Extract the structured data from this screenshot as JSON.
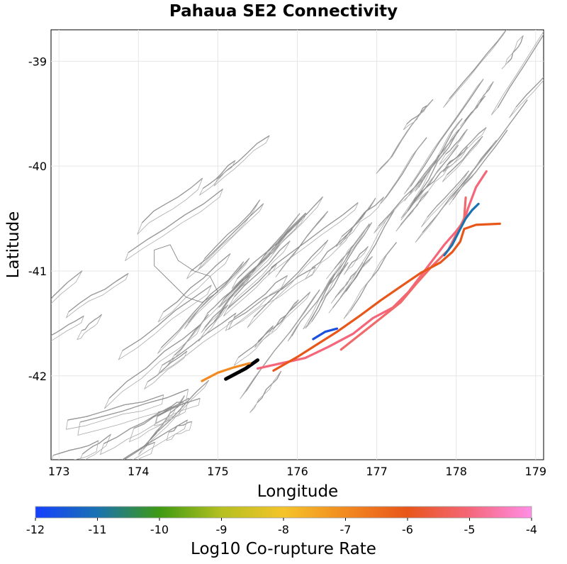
{
  "chart_data": {
    "type": "map",
    "title": "Pahaua SE2 Connectivity",
    "xlabel": "Longitude",
    "ylabel": "Latitude",
    "xlim": [
      172.9,
      179.1
    ],
    "ylim": [
      -42.8,
      -38.7
    ],
    "xticks": [
      173,
      174,
      175,
      176,
      177,
      178,
      179
    ],
    "yticks": [
      -39,
      -40,
      -41,
      -42
    ],
    "grid": true,
    "colorbar": {
      "label": "Log10 Co-rupture Rate",
      "min": -12,
      "max": -4,
      "ticks": [
        -12,
        -11,
        -10,
        -9,
        -8,
        -7,
        -6,
        -5,
        -4
      ],
      "colors": [
        "#1540ff",
        "#1a72b0",
        "#3e9a12",
        "#b5c020",
        "#f4c42a",
        "#f28a20",
        "#e8561a",
        "#f5667a",
        "#ff8ee6"
      ]
    },
    "highlighted_ruptures": [
      {
        "log10_rate": -12,
        "color": "#000000",
        "points": [
          [
            175.1,
            -42.03
          ],
          [
            175.35,
            -41.93
          ],
          [
            175.5,
            -41.85
          ]
        ]
      },
      {
        "log10_rate": -7.3,
        "color": "#f28a20",
        "points": [
          [
            174.8,
            -42.05
          ],
          [
            175.0,
            -41.97
          ],
          [
            175.2,
            -41.92
          ],
          [
            175.4,
            -41.88
          ]
        ]
      },
      {
        "log10_rate": -5.0,
        "color": "#f5667a",
        "points": [
          [
            175.5,
            -41.93
          ],
          [
            175.8,
            -41.88
          ],
          [
            176.1,
            -41.83
          ],
          [
            176.4,
            -41.72
          ],
          [
            176.7,
            -41.6
          ],
          [
            176.95,
            -41.45
          ],
          [
            177.2,
            -41.35
          ],
          [
            177.4,
            -41.2
          ],
          [
            177.55,
            -41.05
          ],
          [
            177.7,
            -40.9
          ],
          [
            177.85,
            -40.75
          ],
          [
            178.0,
            -40.62
          ],
          [
            178.1,
            -40.52
          ],
          [
            178.15,
            -40.4
          ],
          [
            178.25,
            -40.2
          ],
          [
            178.38,
            -40.05
          ]
        ]
      },
      {
        "log10_rate": -5.3,
        "color": "#f06a6a",
        "points": [
          [
            176.55,
            -41.75
          ],
          [
            176.8,
            -41.6
          ],
          [
            177.05,
            -41.45
          ],
          [
            177.3,
            -41.3
          ],
          [
            177.5,
            -41.12
          ],
          [
            177.7,
            -40.95
          ],
          [
            177.9,
            -40.8
          ],
          [
            178.0,
            -40.65
          ],
          [
            178.1,
            -40.5
          ],
          [
            178.12,
            -40.3
          ]
        ]
      },
      {
        "log10_rate": -6.0,
        "color": "#e8561a",
        "points": [
          [
            175.7,
            -41.95
          ],
          [
            176.0,
            -41.82
          ],
          [
            176.25,
            -41.7
          ],
          [
            176.5,
            -41.58
          ],
          [
            176.8,
            -41.42
          ],
          [
            177.05,
            -41.28
          ],
          [
            177.3,
            -41.15
          ],
          [
            177.55,
            -41.02
          ],
          [
            177.8,
            -40.92
          ],
          [
            177.95,
            -40.82
          ],
          [
            178.05,
            -40.72
          ],
          [
            178.1,
            -40.6
          ],
          [
            178.25,
            -40.56
          ],
          [
            178.55,
            -40.55
          ]
        ]
      },
      {
        "log10_rate": -11.0,
        "color": "#1a72b0",
        "points": [
          [
            177.85,
            -40.85
          ],
          [
            177.95,
            -40.75
          ],
          [
            178.05,
            -40.6
          ],
          [
            178.12,
            -40.5
          ],
          [
            178.2,
            -40.42
          ],
          [
            178.28,
            -40.36
          ]
        ]
      },
      {
        "log10_rate": -11.8,
        "color": "#1a4fe0",
        "points": [
          [
            176.2,
            -41.65
          ],
          [
            176.35,
            -41.58
          ],
          [
            176.5,
            -41.55
          ]
        ]
      }
    ]
  }
}
